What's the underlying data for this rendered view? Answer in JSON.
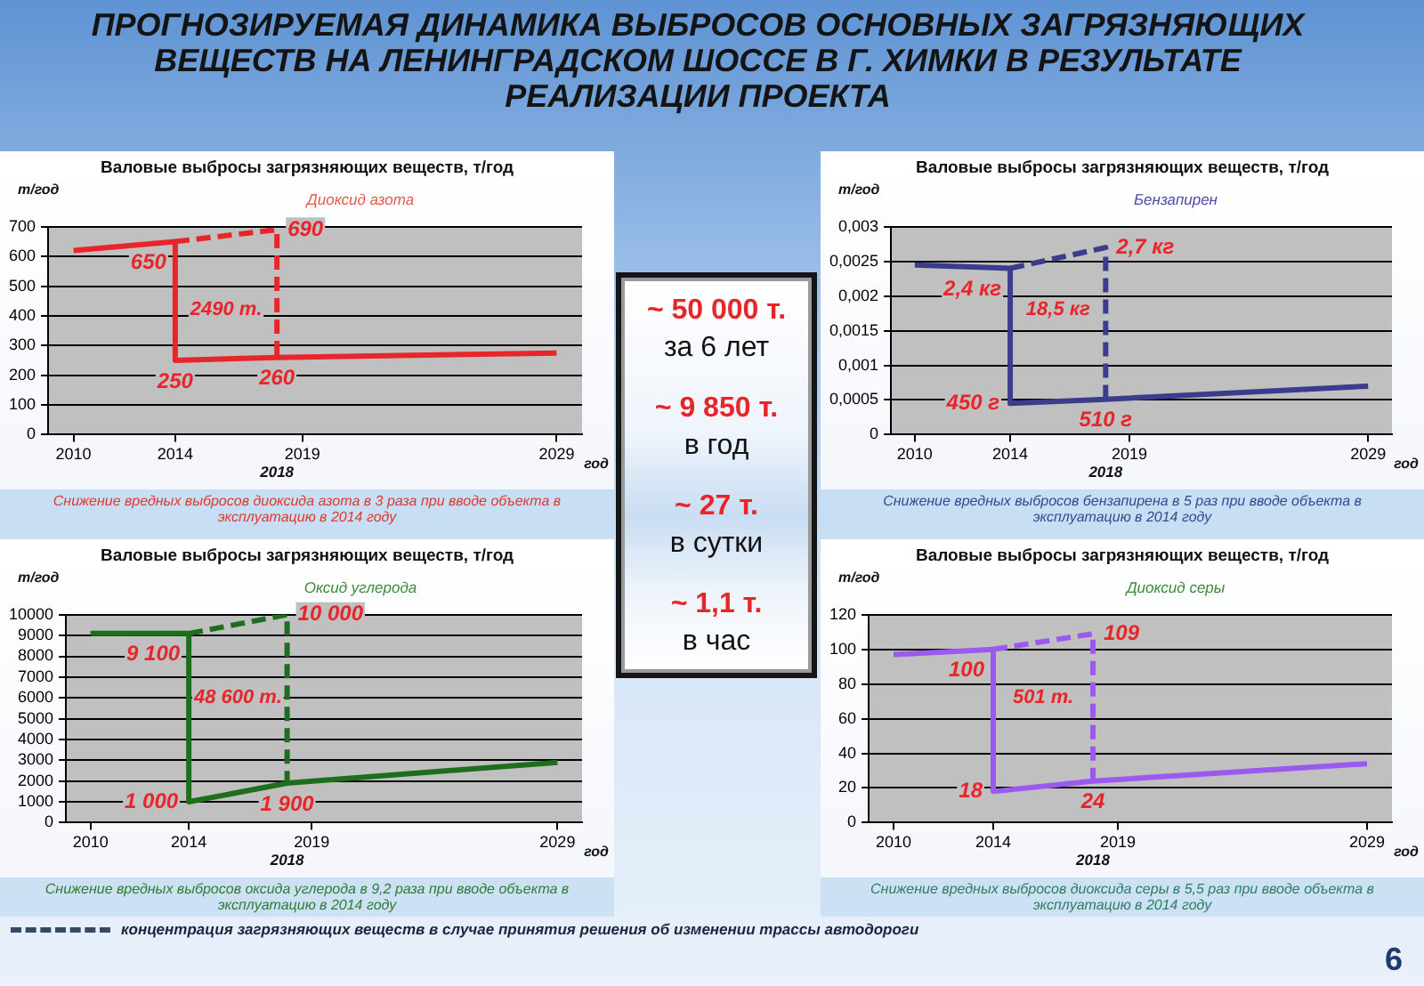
{
  "chart_data": [
    {
      "type": "other",
      "title": "ПРОГНОЗИРУЕМАЯ ДИНАМИКА ВЫБРОСОВ ОСНОВНЫХ ЗАГРЯЗНЯЮЩИХ ВЕЩЕСТВ НА ЛЕНИНГРАДСКОМ ШОССЕ В Г. ХИМКИ В РЕЗУЛЬТАТЕ РЕАЛИЗАЦИИ ПРОЕКТА"
    },
    {
      "type": "line",
      "title": "Валовые выбросы загрязняющих веществ, т/год",
      "subtitle": "Диоксид азота",
      "ylabel": "т/год",
      "xlabel": "год",
      "xlim": [
        2009,
        2030
      ],
      "xticks": [
        2010,
        2014,
        2019,
        2029
      ],
      "ylim": [
        0,
        700
      ],
      "yticks": [
        0,
        100,
        200,
        300,
        400,
        500,
        600,
        700
      ],
      "grid": "y",
      "marker": "none",
      "series": [
        {
          "color": "#e8262a",
          "line_style": "solid",
          "x": [
            2010,
            2014,
            2014,
            2018,
            2029
          ],
          "values": [
            620,
            650,
            250,
            260,
            275
          ],
          "value_labels": [
            null,
            "650",
            "250",
            "260",
            null
          ]
        },
        {
          "color": "#e8262a",
          "line_style": "dashed",
          "x": [
            2014,
            2018,
            2018
          ],
          "values": [
            650,
            690,
            260
          ],
          "value_labels": [
            null,
            "690",
            null
          ]
        }
      ],
      "annotations": [
        "2490 т.",
        "2018",
        "Снижение вредных выбросов диоксида азота в 3 раза при вводе объекта в эксплуатацию в 2014 году"
      ]
    },
    {
      "type": "other",
      "annotations": [
        "~ 50 000 т.",
        "за 6 лет",
        "~ 9 850 т.",
        "в год",
        "~ 27 т.",
        "в сутки",
        "~ 1,1 т.",
        "в час"
      ]
    },
    {
      "type": "line",
      "title": "Валовые выбросы загрязняющих веществ, т/год",
      "subtitle": "Бензапирен",
      "ylabel": "т/год",
      "xlabel": "год",
      "xlim": [
        2009,
        2030
      ],
      "xticks": [
        2010,
        2014,
        2019,
        2029
      ],
      "ylim": [
        0,
        0.003
      ],
      "yticks": [
        0,
        {
          "value": 0.0005,
          "label": "0,0005"
        },
        {
          "value": 0.001,
          "label": "0,001"
        },
        {
          "value": 0.0015,
          "label": "0,0015"
        },
        {
          "value": 0.002,
          "label": "0,002"
        },
        {
          "value": 0.0025,
          "label": "0,0025"
        },
        {
          "value": 0.003,
          "label": "0,003"
        }
      ],
      "grid": "y",
      "marker": "none",
      "series": [
        {
          "color": "#3c3c8c",
          "line_style": "solid",
          "x": [
            2010,
            2014,
            2014,
            2018,
            2029
          ],
          "values": [
            0.00245,
            0.0024,
            0.00045,
            0.00051,
            0.0007
          ]
        },
        {
          "color": "#3c3c8c",
          "line_style": "dashed",
          "x": [
            2014,
            2018,
            2018
          ],
          "values": [
            0.0024,
            0.0027,
            0.00051
          ]
        }
      ],
      "annotations": [
        "2,4 кг",
        "450 г",
        "510 г",
        "2,7 кг",
        "18,5 кг",
        "2018",
        "Снижение вредных выбросов бензапирена в 5 раз при вводе объекта в эксплуатацию в 2014 году"
      ]
    },
    {
      "type": "line",
      "title": "Валовые выбросы загрязняющих веществ, т/год",
      "subtitle": "Оксид углерода",
      "ylabel": "т/год",
      "xlabel": "год",
      "xlim": [
        2009,
        2030
      ],
      "xticks": [
        2010,
        2014,
        2019,
        2029
      ],
      "ylim": [
        0,
        10000
      ],
      "yticks": [
        0,
        1000,
        2000,
        3000,
        4000,
        5000,
        6000,
        7000,
        8000,
        9000,
        10000
      ],
      "grid": "y",
      "marker": "none",
      "series": [
        {
          "color": "#1f6e1f",
          "line_style": "solid",
          "x": [
            2010,
            2014,
            2014,
            2018,
            2029
          ],
          "values": [
            9100,
            9100,
            1000,
            1900,
            2900
          ],
          "value_labels": [
            null,
            "9 100",
            "1 000",
            "1 900",
            null
          ]
        },
        {
          "color": "#1f6e1f",
          "line_style": "dashed",
          "x": [
            2014,
            2018,
            2018
          ],
          "values": [
            9100,
            10000,
            1900
          ],
          "value_labels": [
            null,
            "10 000",
            null
          ]
        }
      ],
      "annotations": [
        "48 600 т.",
        "2018",
        "Снижение вредных выбросов оксида углерода в 9,2 раза при вводе объекта в эксплуатацию в 2014 году"
      ]
    },
    {
      "type": "line",
      "title": "Валовые выбросы загрязняющих веществ, т/год",
      "subtitle": "Диоксид серы",
      "ylabel": "т/год",
      "xlabel": "год",
      "xlim": [
        2009,
        2030
      ],
      "xticks": [
        2010,
        2014,
        2019,
        2029
      ],
      "ylim": [
        0,
        120
      ],
      "yticks": [
        0,
        20,
        40,
        60,
        80,
        100,
        120
      ],
      "grid": "y",
      "marker": "none",
      "series": [
        {
          "color": "#9b59f0",
          "line_style": "solid",
          "x": [
            2010,
            2014,
            2014,
            2018,
            2029
          ],
          "values": [
            97,
            100,
            18,
            24,
            34
          ],
          "value_labels": [
            null,
            "100",
            "18",
            "24",
            null
          ]
        },
        {
          "color": "#9b59f0",
          "line_style": "dashed",
          "x": [
            2014,
            2018,
            2018
          ],
          "values": [
            100,
            109,
            24
          ],
          "value_labels": [
            null,
            "109",
            null
          ]
        }
      ],
      "annotations": [
        "501 т.",
        "2018",
        "Снижение вредных выбросов диоксида серы в 5,5 раз при вводе объекта в эксплуатацию в 2014 году"
      ]
    },
    {
      "type": "other",
      "annotations": [
        "концентрация загрязняющих веществ в случае принятия решения об изменении трассы автодороги",
        "6"
      ]
    }
  ]
}
